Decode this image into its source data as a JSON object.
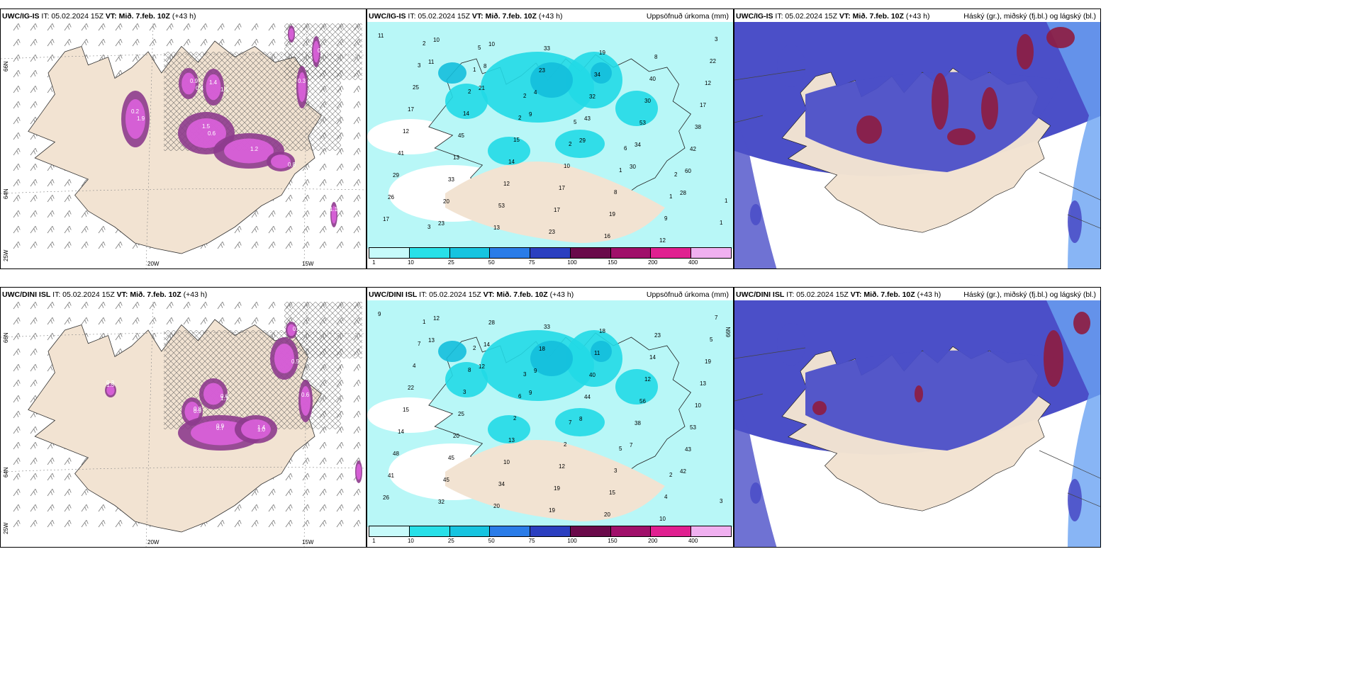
{
  "colors": {
    "land": "#f2e3d2",
    "sea_precip": "#b8f7f7",
    "cyan_mid": "#22d9e6",
    "cyan_dark": "#14bedc",
    "blue_cloud": "#4b4fc8",
    "blue_light": "#6aa3f2",
    "dark_red": "#8e1c3f",
    "magenta": "#d860d8",
    "dark_purple": "#8d3b8d",
    "cbar": [
      "#c7fafa",
      "#28e0e8",
      "#16c4e0",
      "#2a7ce8",
      "#2b3fc0",
      "#6a0a4a",
      "#a0106a",
      "#e02090",
      "#f0b0f0"
    ]
  },
  "panels": {
    "r1c1": {
      "model": "UWC/IG-IS",
      "it": "IT: 05.02.2024 15Z",
      "vt_label": "VT:",
      "vt": "Mið. 7.feb. 10Z",
      "lead": "(+43 h)",
      "right": ""
    },
    "r1c2": {
      "model": "UWC/IG-IS",
      "it": "IT: 05.02.2024 15Z",
      "vt_label": "VT:",
      "vt": "Mið. 7.feb. 10Z",
      "lead": "(+43 h)",
      "right": "Uppsöfnuð úrkoma (mm)"
    },
    "r1c3": {
      "model": "UWC/IG-IS",
      "it": "IT: 05.02.2024 15Z",
      "vt_label": "VT:",
      "vt": "Mið. 7.feb. 10Z",
      "lead": "(+43 h)",
      "right": "Háský (gr.), miðský (fj.bl.) og lágský (bl.)"
    },
    "r2c1": {
      "model": "UWC/DINI ISL",
      "it": "IT: 05.02.2024 15Z",
      "vt_label": "VT:",
      "vt": "Mið. 7.feb. 10Z",
      "lead": "(+43 h)",
      "right": ""
    },
    "r2c2": {
      "model": "UWC/DINI ISL",
      "it": "IT: 05.02.2024 15Z",
      "vt_label": "VT:",
      "vt": "Mið. 7.feb. 10Z",
      "lead": "(+43 h)",
      "right": "Uppsöfnuð úrkoma (mm)"
    },
    "r2c3": {
      "model": "UWC/DINI ISL",
      "it": "IT: 05.02.2024 15Z",
      "vt_label": "VT:",
      "vt": "Mið. 7.feb. 10Z",
      "lead": "(+43 h)",
      "right": "Háský (gr.), miðský (fj.bl.) og lágský (bl.)"
    }
  },
  "axis": {
    "lon_20": "20W",
    "lon_15": "15W",
    "lat_66": "66N",
    "lat_64": "64N",
    "lat_25": "25W"
  },
  "colorbar_labels": [
    "1",
    "10",
    "25",
    "50",
    "75",
    "100",
    "150",
    "200",
    "400"
  ],
  "precip_numbers_top": [
    "11",
    "11",
    "21",
    "9",
    "29",
    "30",
    "28",
    "17",
    "10",
    "8",
    "4",
    "43",
    "34",
    "60",
    "26",
    "23",
    "10",
    "23",
    "32",
    "53",
    "42",
    "29",
    "20",
    "13",
    "33",
    "34",
    "30",
    "38",
    "41",
    "33",
    "53",
    "23",
    "19",
    "40",
    "17",
    "12",
    "13",
    "12",
    "17",
    "16",
    "8",
    "12",
    "17",
    "45",
    "14",
    "17",
    "19",
    "12",
    "22",
    "25",
    "14",
    "15",
    "10",
    "8",
    "9",
    "3",
    "3",
    "2",
    "2",
    "2",
    "1",
    "1",
    "1",
    "2",
    "1",
    "2",
    "5",
    "6",
    "2",
    "1",
    "3",
    "5"
  ],
  "precip_numbers_bottom": [
    "9",
    "13",
    "12",
    "9",
    "8",
    "7",
    "42",
    "26",
    "12",
    "14",
    "9",
    "44",
    "38",
    "43",
    "41",
    "32",
    "28",
    "18",
    "40",
    "56",
    "53",
    "48",
    "45",
    "20",
    "33",
    "11",
    "12",
    "10",
    "14",
    "45",
    "34",
    "19",
    "18",
    "14",
    "13",
    "15",
    "20",
    "10",
    "19",
    "20",
    "23",
    "19",
    "22",
    "25",
    "13",
    "12",
    "15",
    "10",
    "5",
    "4",
    "3",
    "2",
    "2",
    "3",
    "4",
    "7",
    "7",
    "8",
    "6",
    "7",
    "5",
    "2",
    "3",
    "1",
    "2",
    "3"
  ],
  "snow_labels_top": [
    "0.2",
    "0.9",
    "1.1",
    "1.5",
    "1.2",
    "0.8",
    "0.3",
    "0.6",
    "0.7",
    "1.1",
    "1.9",
    "0.4",
    "1.4",
    "0.6"
  ],
  "snow_labels_bottom": [
    "0.3",
    "0.8",
    "0.6",
    "0.9",
    "1.4",
    "0.5",
    "0.6",
    "0.4",
    "1.3",
    "1.5",
    "0.9",
    "1.1",
    "0.7",
    "1.0"
  ]
}
